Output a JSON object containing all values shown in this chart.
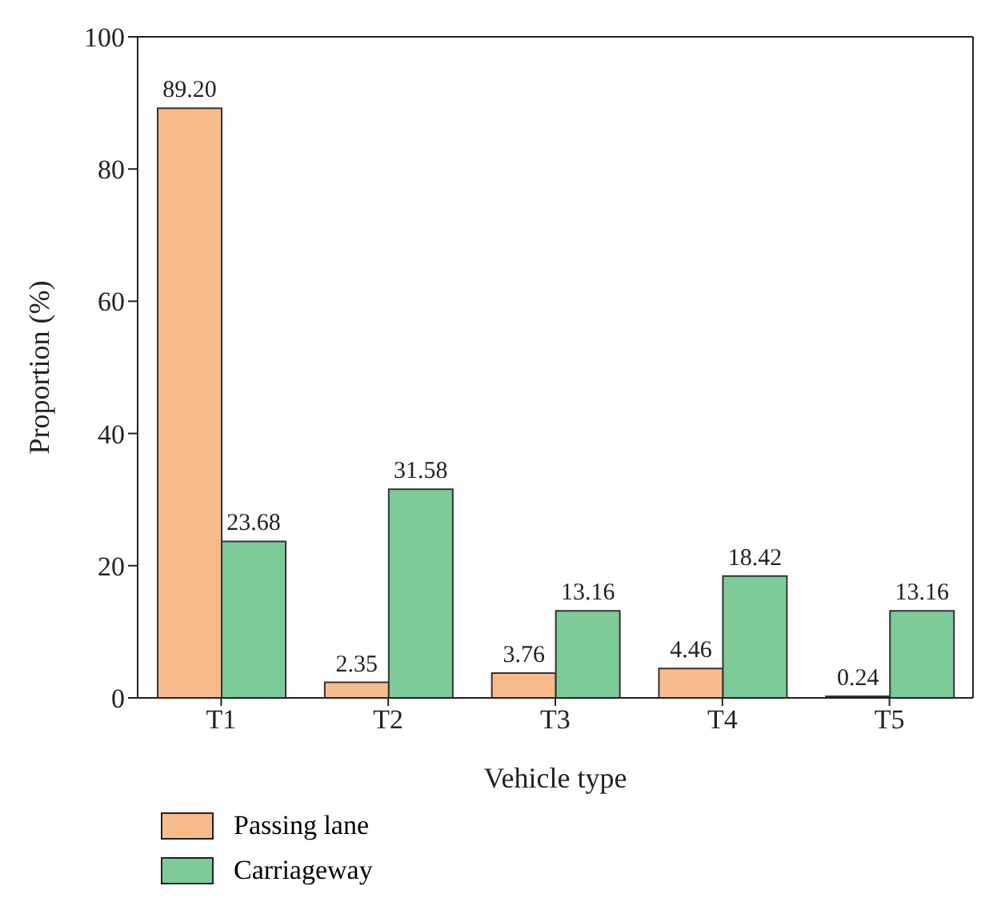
{
  "chart_data": {
    "type": "bar",
    "xlabel": "Vehicle type",
    "ylabel": "Proportion (%)",
    "categories": [
      "T1",
      "T2",
      "T3",
      "T4",
      "T5"
    ],
    "series": [
      {
        "name": "Passing lane",
        "color": "#f8bb8c",
        "values": [
          89.2,
          2.35,
          3.76,
          4.46,
          0.24
        ],
        "value_labels": [
          "89.20",
          "2.35",
          "3.76",
          "4.46",
          "0.24"
        ]
      },
      {
        "name": "Carriageway",
        "color": "#7ccb98",
        "values": [
          23.68,
          31.58,
          13.16,
          18.42,
          13.16
        ],
        "value_labels": [
          "23.68",
          "31.58",
          "13.16",
          "18.42",
          "13.16"
        ]
      }
    ],
    "ylim": [
      0,
      100
    ],
    "yticks": [
      0,
      20,
      40,
      60,
      80,
      100
    ],
    "grid": false,
    "legend": "bottom left"
  }
}
